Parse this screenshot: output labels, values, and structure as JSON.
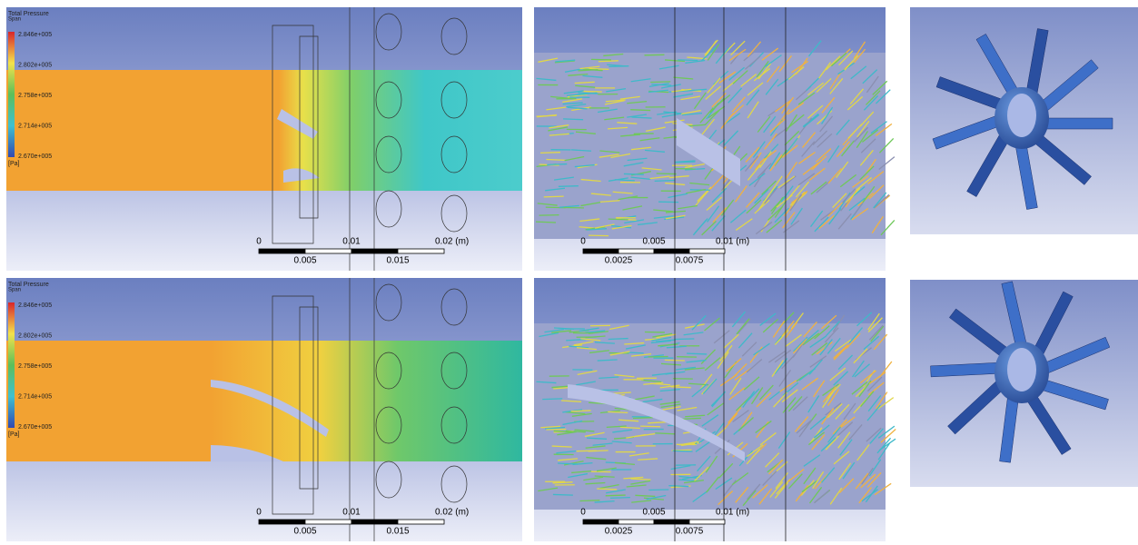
{
  "rows": [
    {
      "legend": {
        "title": "Total Pressure",
        "subtitle": "Span",
        "labels": [
          "2.846e+005",
          "2.802e+005",
          "2.758e+005",
          "2.714e+005",
          "2.670e+005"
        ],
        "unit": "[Pa]"
      },
      "scale_left": {
        "top": [
          "0",
          "0.01",
          "0.02 (m)"
        ],
        "bottom": [
          "0.005",
          "0.015"
        ]
      },
      "scale_mid": {
        "top": [
          "0",
          "0.005",
          "0.01 (m)"
        ],
        "bottom": [
          "0.0025",
          "0.0075"
        ]
      }
    },
    {
      "legend": {
        "title": "Total Pressure",
        "subtitle": "Span",
        "labels": [
          "2.846e+005",
          "2.802e+005",
          "2.758e+005",
          "2.714e+005",
          "2.670e+005"
        ],
        "unit": "[Pa]"
      },
      "scale_left": {
        "top": [
          "0",
          "0.01",
          "0.02 (m)"
        ],
        "bottom": [
          "0.005",
          "0.015"
        ]
      },
      "scale_mid": {
        "top": [
          "0",
          "0.005",
          "0.01 (m)"
        ],
        "bottom": [
          "0.0025",
          "0.0075"
        ]
      }
    }
  ]
}
